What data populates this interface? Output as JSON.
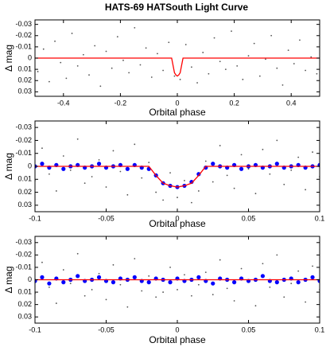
{
  "chart_data": [
    {
      "type": "scatter",
      "title": "HATS-69 HATSouth Light Curve",
      "x_label": "Orbital phase",
      "y_label": "Δ mag",
      "xlim": [
        -0.5,
        0.5
      ],
      "xticks": [
        -0.4,
        -0.2,
        0,
        0.2,
        0.4
      ],
      "ylim": [
        -0.034,
        0.034
      ],
      "yticks": [
        -0.03,
        -0.02,
        -0.01,
        0,
        0.01,
        0.02,
        0.03
      ],
      "y_inverted": true,
      "series": [
        {
          "color": "#555555",
          "marker": "point",
          "x": [
            -0.49,
            -0.47,
            -0.45,
            -0.43,
            -0.41,
            -0.39,
            -0.37,
            -0.35,
            -0.33,
            -0.31,
            -0.29,
            -0.27,
            -0.25,
            -0.23,
            -0.21,
            -0.19,
            -0.17,
            -0.15,
            -0.13,
            -0.11,
            -0.09,
            -0.07,
            -0.05,
            -0.03,
            -0.01,
            0.01,
            0.03,
            0.05,
            0.07,
            0.09,
            0.11,
            0.13,
            0.15,
            0.17,
            0.19,
            0.21,
            0.23,
            0.25,
            0.27,
            0.29,
            0.31,
            0.33,
            0.35,
            0.37,
            0.39,
            0.41,
            0.43,
            0.45,
            0.47,
            0.49
          ],
          "values": [
            0.012,
            -0.008,
            0.021,
            -0.015,
            0.004,
            0.018,
            -0.022,
            0.007,
            -0.003,
            0.015,
            -0.011,
            0.025,
            -0.006,
            0.009,
            -0.019,
            0.002,
            0.013,
            -0.027,
            0.006,
            -0.009,
            0.017,
            -0.004,
            0.011,
            -0.014,
            0.016,
            0.019,
            -0.012,
            0.008,
            0.022,
            -0.005,
            0.014,
            -0.018,
            0.003,
            0.01,
            -0.024,
            0.007,
            0.019,
            -0.002,
            -0.013,
            0.016,
            0.001,
            -0.02,
            0.009,
            0.024,
            -0.007,
            0.005,
            -0.016,
            0.011,
            -0.001,
            0.014
          ]
        },
        {
          "color": "#ff0000",
          "marker": "line",
          "x": [
            -0.5,
            -0.02,
            -0.01,
            -0.005,
            0,
            0.005,
            0.01,
            0.02,
            0.5
          ],
          "values": [
            0,
            0,
            0.013,
            0.015,
            0.016,
            0.015,
            0.013,
            0,
            0
          ]
        }
      ]
    },
    {
      "type": "scatter",
      "x_label": "Orbital phase",
      "y_label": "Δ mag",
      "xlim": [
        -0.1,
        0.1
      ],
      "xticks": [
        -0.1,
        -0.05,
        0,
        0.05,
        0.1
      ],
      "ylim": [
        -0.035,
        0.035
      ],
      "yticks": [
        -0.03,
        -0.02,
        -0.01,
        0,
        0.01,
        0.02,
        0.03
      ],
      "y_inverted": true,
      "series": [
        {
          "color": "#555555",
          "marker": "point",
          "x": [
            -0.1,
            -0.095,
            -0.09,
            -0.085,
            -0.08,
            -0.075,
            -0.07,
            -0.065,
            -0.06,
            -0.055,
            -0.05,
            -0.045,
            -0.04,
            -0.035,
            -0.03,
            -0.025,
            -0.02,
            -0.015,
            -0.01,
            -0.005,
            0,
            0.005,
            0.01,
            0.015,
            0.02,
            0.025,
            0.03,
            0.035,
            0.04,
            0.045,
            0.05,
            0.055,
            0.06,
            0.065,
            0.07,
            0.075,
            0.08,
            0.085,
            0.09,
            0.095,
            0.1
          ],
          "values": [
            0.011,
            -0.014,
            0.006,
            0.019,
            -0.008,
            0.003,
            -0.021,
            0.013,
            0.008,
            -0.005,
            0.016,
            -0.012,
            0.004,
            0.022,
            -0.017,
            0.009,
            -0.003,
            0.02,
            0.026,
            0.005,
            0.024,
            0.011,
            0.028,
            0.019,
            -0.004,
            0.012,
            -0.016,
            0.007,
            0.017,
            -0.009,
            0.002,
            0.021,
            -0.013,
            0.006,
            -0.02,
            0.014,
            0.003,
            -0.007,
            0.018,
            -0.011,
            0.008
          ]
        },
        {
          "color": "#0000ff",
          "marker": "dot",
          "x": [
            -0.1,
            -0.095,
            -0.09,
            -0.085,
            -0.08,
            -0.075,
            -0.07,
            -0.065,
            -0.06,
            -0.055,
            -0.05,
            -0.045,
            -0.04,
            -0.035,
            -0.03,
            -0.025,
            -0.02,
            -0.015,
            -0.01,
            -0.005,
            0,
            0.005,
            0.01,
            0.015,
            0.02,
            0.025,
            0.03,
            0.035,
            0.04,
            0.045,
            0.05,
            0.055,
            0.06,
            0.065,
            0.07,
            0.075,
            0.08,
            0.085,
            0.09,
            0.095,
            0.1
          ],
          "values": [
            0,
            -0.002,
            0.001,
            -0.001,
            0.002,
            0,
            -0.001,
            0.001,
            0,
            -0.002,
            0.001,
            0,
            -0.001,
            0.002,
            -0.001,
            0.001,
            0.002,
            0.007,
            0.013,
            0.015,
            0.016,
            0.015,
            0.012,
            0.006,
            0.001,
            -0.002,
            0,
            0.001,
            -0.001,
            0.002,
            0,
            -0.001,
            0.001,
            0,
            -0.002,
            0.001,
            0,
            -0.001,
            0.001,
            0,
            -0.001
          ]
        },
        {
          "color": "#ff0000",
          "marker": "line",
          "x": [
            -0.1,
            -0.02,
            -0.015,
            -0.01,
            -0.005,
            0,
            0.005,
            0.01,
            0.015,
            0.02,
            0.1
          ],
          "values": [
            0,
            0,
            0.007,
            0.013,
            0.015,
            0.016,
            0.015,
            0.013,
            0.007,
            0,
            0
          ]
        }
      ]
    },
    {
      "type": "scatter",
      "x_label": "Orbital phase",
      "y_label": "Δ mag",
      "xlim": [
        -0.1,
        0.1
      ],
      "xticks": [
        -0.1,
        -0.05,
        0,
        0.05,
        0.1
      ],
      "ylim": [
        -0.035,
        0.035
      ],
      "yticks": [
        -0.03,
        -0.02,
        -0.01,
        0,
        0.01,
        0.02,
        0.03
      ],
      "y_inverted": true,
      "series": [
        {
          "color": "#555555",
          "marker": "point",
          "x": [
            -0.1,
            -0.095,
            -0.09,
            -0.085,
            -0.08,
            -0.075,
            -0.07,
            -0.065,
            -0.06,
            -0.055,
            -0.05,
            -0.045,
            -0.04,
            -0.035,
            -0.03,
            -0.025,
            -0.02,
            -0.015,
            -0.01,
            -0.005,
            0,
            0.005,
            0.01,
            0.015,
            0.02,
            0.025,
            0.03,
            0.035,
            0.04,
            0.045,
            0.05,
            0.055,
            0.06,
            0.065,
            0.07,
            0.075,
            0.08,
            0.085,
            0.09,
            0.095,
            0.1
          ],
          "values": [
            0.011,
            -0.014,
            0.006,
            0.019,
            -0.008,
            0.003,
            -0.021,
            0.013,
            0.008,
            -0.005,
            0.016,
            -0.012,
            0.004,
            0.022,
            -0.017,
            0.009,
            -0.003,
            0.014,
            0.01,
            -0.01,
            0.008,
            -0.004,
            0.013,
            0.004,
            -0.006,
            0.012,
            -0.016,
            0.007,
            0.017,
            -0.009,
            0.002,
            0.021,
            -0.013,
            0.006,
            -0.02,
            0.014,
            0.003,
            -0.007,
            0.018,
            -0.011,
            0.008
          ]
        },
        {
          "color": "#0000ff",
          "marker": "dot",
          "x": [
            -0.1,
            -0.095,
            -0.09,
            -0.085,
            -0.08,
            -0.075,
            -0.07,
            -0.065,
            -0.06,
            -0.055,
            -0.05,
            -0.045,
            -0.04,
            -0.035,
            -0.03,
            -0.025,
            -0.02,
            -0.015,
            -0.01,
            -0.005,
            0,
            0.005,
            0.01,
            0.015,
            0.02,
            0.025,
            0.03,
            0.035,
            0.04,
            0.045,
            0.05,
            0.055,
            0.06,
            0.065,
            0.07,
            0.075,
            0.08,
            0.085,
            0.09,
            0.095,
            0.1
          ],
          "values": [
            0.001,
            -0.002,
            0.003,
            -0.001,
            0.002,
            0,
            -0.003,
            0.001,
            0,
            -0.002,
            0.001,
            0.002,
            -0.001,
            0,
            -0.002,
            0.001,
            0.002,
            -0.001,
            0,
            0.002,
            -0.001,
            0.001,
            0,
            -0.002,
            0.001,
            0.003,
            -0.001,
            0,
            0.002,
            -0.001,
            0.001,
            0,
            -0.003,
            0.001,
            0.002,
            0,
            -0.001,
            0.002,
            0,
            -0.002,
            0.001
          ]
        },
        {
          "color": "#ff0000",
          "marker": "line",
          "x": [
            -0.1,
            0.1
          ],
          "values": [
            0,
            0
          ]
        }
      ]
    }
  ]
}
